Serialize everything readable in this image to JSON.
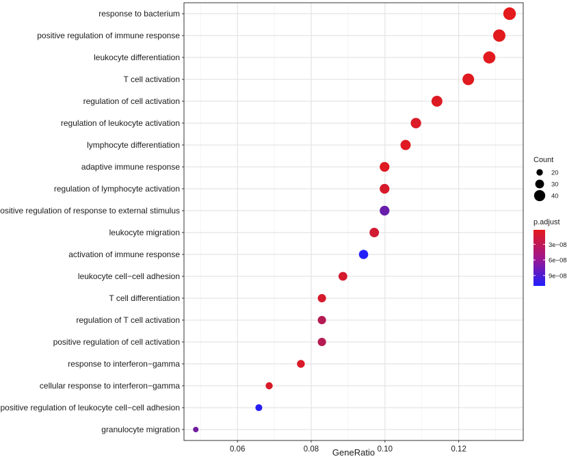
{
  "chart_data": {
    "type": "scatter",
    "xlabel": "GeneRatio",
    "ylabel": "",
    "xlim": [
      0.0455,
      0.1375
    ],
    "x_ticks": [
      0.06,
      0.08,
      0.1,
      0.12
    ],
    "x_tick_labels": [
      "0.06",
      "0.08",
      "0.10",
      "0.12"
    ],
    "grid": true,
    "legend_position": "right",
    "size_legend": {
      "title": "Count",
      "values": [
        20,
        30,
        40
      ],
      "labels": [
        "20",
        "30",
        "40"
      ]
    },
    "color_legend": {
      "title": "p.adjust",
      "low_color": "#e41a1c",
      "high_color": "#1f1fff",
      "range": [
        2e-09,
        1.1e-07
      ],
      "ticks": [
        3e-08,
        6e-08,
        9e-08
      ],
      "tick_labels": [
        "3e−08",
        "6e−08",
        "9e−08"
      ]
    },
    "points": [
      {
        "term": "response to bacterium",
        "gene_ratio": 0.1338,
        "count": 46,
        "p_adjust": 2e-09
      },
      {
        "term": "positive regulation of immune response",
        "gene_ratio": 0.131,
        "count": 45,
        "p_adjust": 3e-09
      },
      {
        "term": "leukocyte differentiation",
        "gene_ratio": 0.1283,
        "count": 44,
        "p_adjust": 3e-09
      },
      {
        "term": "T cell activation",
        "gene_ratio": 0.1226,
        "count": 42,
        "p_adjust": 4e-09
      },
      {
        "term": "regulation of cell activation",
        "gene_ratio": 0.1141,
        "count": 39,
        "p_adjust": 6e-09
      },
      {
        "term": "regulation of leukocyte activation",
        "gene_ratio": 0.1084,
        "count": 37,
        "p_adjust": 7e-09
      },
      {
        "term": "lymphocyte differentiation",
        "gene_ratio": 0.1056,
        "count": 36,
        "p_adjust": 5e-09
      },
      {
        "term": "adaptive immune response",
        "gene_ratio": 0.0999,
        "count": 34,
        "p_adjust": 5e-09
      },
      {
        "term": "regulation of lymphocyte activation",
        "gene_ratio": 0.0999,
        "count": 34,
        "p_adjust": 9e-09
      },
      {
        "term": "positive regulation of response to external stimulus",
        "gene_ratio": 0.0999,
        "count": 34,
        "p_adjust": 7e-08
      },
      {
        "term": "leukocyte migration",
        "gene_ratio": 0.0971,
        "count": 33,
        "p_adjust": 1.3e-08
      },
      {
        "term": "activation of immune response",
        "gene_ratio": 0.0942,
        "count": 32,
        "p_adjust": 1.08e-07
      },
      {
        "term": "leukocyte cell−cell adhesion",
        "gene_ratio": 0.0886,
        "count": 30,
        "p_adjust": 1e-08
      },
      {
        "term": "T cell differentiation",
        "gene_ratio": 0.0829,
        "count": 28,
        "p_adjust": 1e-08
      },
      {
        "term": "regulation of T cell activation",
        "gene_ratio": 0.0829,
        "count": 28,
        "p_adjust": 2.8e-08
      },
      {
        "term": "positive regulation of cell activation",
        "gene_ratio": 0.0829,
        "count": 28,
        "p_adjust": 2.8e-08
      },
      {
        "term": "response to interferon−gamma",
        "gene_ratio": 0.0772,
        "count": 26,
        "p_adjust": 8e-09
      },
      {
        "term": "cellular response to interferon−gamma",
        "gene_ratio": 0.0686,
        "count": 23,
        "p_adjust": 8e-09
      },
      {
        "term": "positive regulation of leukocyte cell−cell adhesion",
        "gene_ratio": 0.0658,
        "count": 22,
        "p_adjust": 1.05e-07
      },
      {
        "term": "granulocyte migration",
        "gene_ratio": 0.0487,
        "count": 16,
        "p_adjust": 6.5e-08
      }
    ]
  }
}
